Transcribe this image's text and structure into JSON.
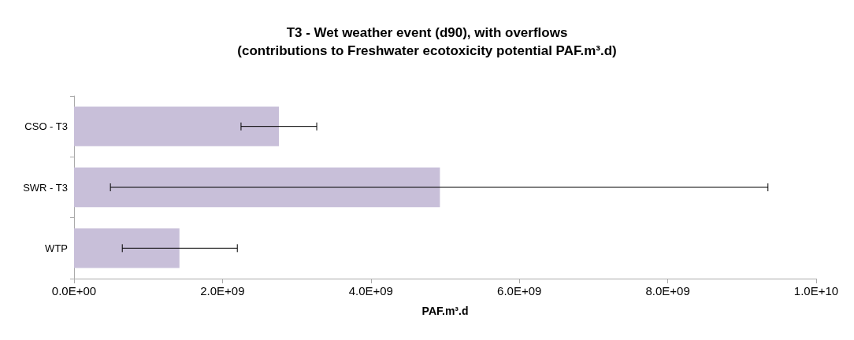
{
  "chart_data": {
    "type": "bar",
    "orientation": "horizontal",
    "title": "T3 - Wet weather event (d90), with overflows",
    "subtitle": "(contributions to Freshwater ecotoxicity potential PAF.m³.d)",
    "xlabel": "PAF.m³.d",
    "categories": [
      "CSO - T3",
      "SWR - T3",
      "WTP"
    ],
    "values": [
      2760000000.0,
      4930000000.0,
      1420000000.0
    ],
    "errors": [
      [
        2250000000.0,
        3270000000.0
      ],
      [
        490000000.0,
        9350000000.0
      ],
      [
        650000000.0,
        2200000000.0
      ]
    ],
    "color": "#c8bfd9",
    "xlim": [
      0,
      10000000000.0
    ],
    "xticks": [
      {
        "value": 0,
        "label": "0.0E+00"
      },
      {
        "value": 2000000000.0,
        "label": "2.0E+09"
      },
      {
        "value": 4000000000.0,
        "label": "4.0E+09"
      },
      {
        "value": 6000000000.0,
        "label": "6.0E+09"
      },
      {
        "value": 8000000000.0,
        "label": "8.0E+09"
      },
      {
        "value": 10000000000.0,
        "label": "1.0E+10"
      }
    ],
    "grid": false
  }
}
